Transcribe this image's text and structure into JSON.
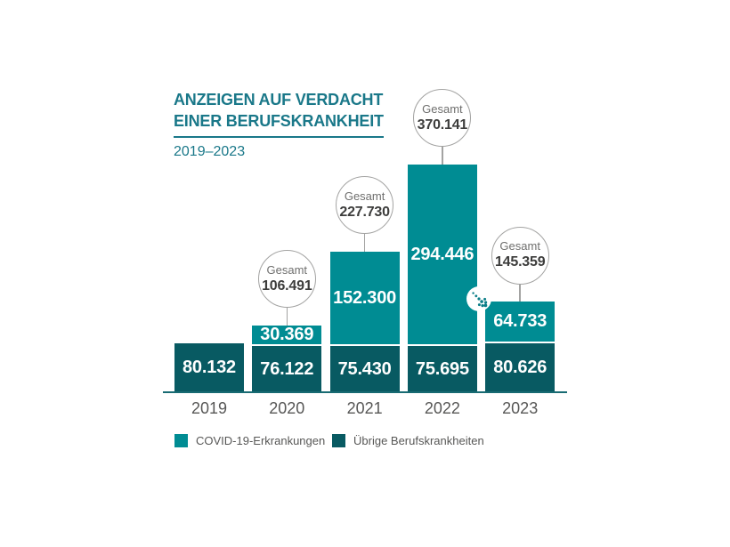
{
  "title": {
    "line1": "ANZEIGEN AUF VERDACHT",
    "line2": "EINER BERUFSKRANKHEIT",
    "subtitle": "2019–2023"
  },
  "colors": {
    "covid": "#008c93",
    "other": "#085a62",
    "title": "#1a7889",
    "axis": "#186b73",
    "text_gray": "#575756",
    "gesamt_label": "#6f6f6e",
    "gesamt_value": "#3d3d3c",
    "circle_border": "#a3a3a2",
    "trend_arrow": "#0b7e88"
  },
  "chart_data": {
    "type": "bar",
    "stacked": true,
    "title": "ANZEIGEN AUF VERDACHT EINER BERUFSKRANKHEIT",
    "subtitle": "2019–2023",
    "categories": [
      "2019",
      "2020",
      "2021",
      "2022",
      "2023"
    ],
    "series": [
      {
        "name": "COVID-19-Erkrankungen",
        "color_key": "covid",
        "values": [
          0,
          30369,
          152300,
          294446,
          64733
        ],
        "display_labels": [
          "",
          "30.369",
          "152.300",
          "294.446",
          "64.733"
        ]
      },
      {
        "name": "Übrige Berufskrankheiten",
        "color_key": "other",
        "values": [
          80132,
          76122,
          75430,
          75695,
          80626
        ],
        "display_labels": [
          "80.132",
          "76.122",
          "75.430",
          "75.695",
          "80.626"
        ]
      }
    ],
    "totals": {
      "label": "Gesamt",
      "values": [
        null,
        106491,
        227730,
        370141,
        145359
      ],
      "display_labels": [
        "",
        "106.491",
        "227.730",
        "370.141",
        "145.359"
      ]
    },
    "annotations": [
      {
        "type": "dotted-arrow-down-right",
        "meaning": "decrease",
        "between": [
          "2022",
          "2023"
        ]
      }
    ],
    "y_axis_visible": false,
    "gridlines": false,
    "legend_position": "bottom",
    "value_format": "de-thousands-dot"
  },
  "legend": {
    "items": [
      {
        "label": "COVID-19-Erkrankungen",
        "color_key": "covid"
      },
      {
        "label": "Übrige Berufskrankheiten",
        "color_key": "other"
      }
    ]
  }
}
